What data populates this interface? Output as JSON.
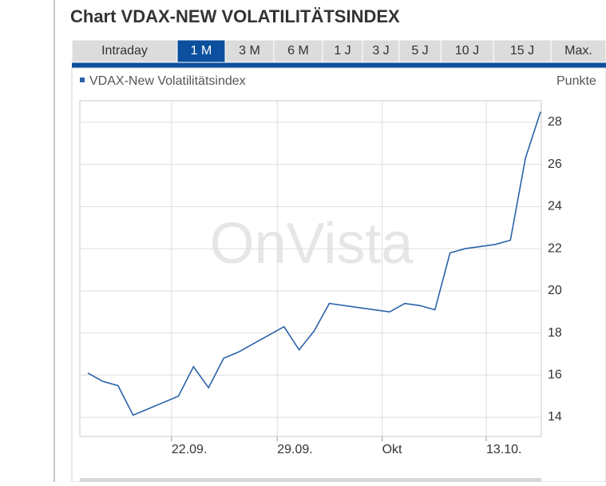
{
  "header": {
    "title": "Chart VDAX-NEW VOLATILITÄTSINDEX"
  },
  "tabs": [
    "Intraday",
    "1 M",
    "3 M",
    "6 M",
    "1 J",
    "3 J",
    "5 J",
    "10 J",
    "15 J",
    "Max."
  ],
  "active_tab": "1 M",
  "chart_data": {
    "type": "line",
    "y_label": "Punkte",
    "watermark": "OnVista",
    "x": [
      0,
      1,
      2,
      3,
      4,
      5,
      6,
      7,
      8,
      9,
      10,
      11,
      12,
      13,
      14,
      15,
      16,
      17,
      18,
      19,
      20,
      21,
      22,
      23,
      24,
      25,
      26,
      27,
      28,
      29,
      30
    ],
    "series": [
      {
        "name": "VDAX-New Volatilitätsindex",
        "color": "#2a63a8",
        "values": [
          16.1,
          15.7,
          15.5,
          14.1,
          14.4,
          14.7,
          15.0,
          16.4,
          15.4,
          16.8,
          17.1,
          17.5,
          17.9,
          18.3,
          17.2,
          18.1,
          19.4,
          19.3,
          19.2,
          19.1,
          19.0,
          19.4,
          19.3,
          19.1,
          21.8,
          22.0,
          22.1,
          22.2,
          22.4,
          26.3,
          28.5
        ]
      }
    ],
    "xlim": [
      -0.53,
      30.05
    ],
    "xticks": [
      {
        "value": 5.55,
        "label": "22.09."
      },
      {
        "value": 12.55,
        "label": "29.09."
      },
      {
        "value": 19.5,
        "label": "Okt"
      },
      {
        "value": 26.4,
        "label": "13.10."
      }
    ],
    "ylim": [
      13.09,
      29.02
    ],
    "yticks": [
      14,
      16,
      18,
      20,
      22,
      24,
      26,
      28
    ],
    "grid": true
  }
}
